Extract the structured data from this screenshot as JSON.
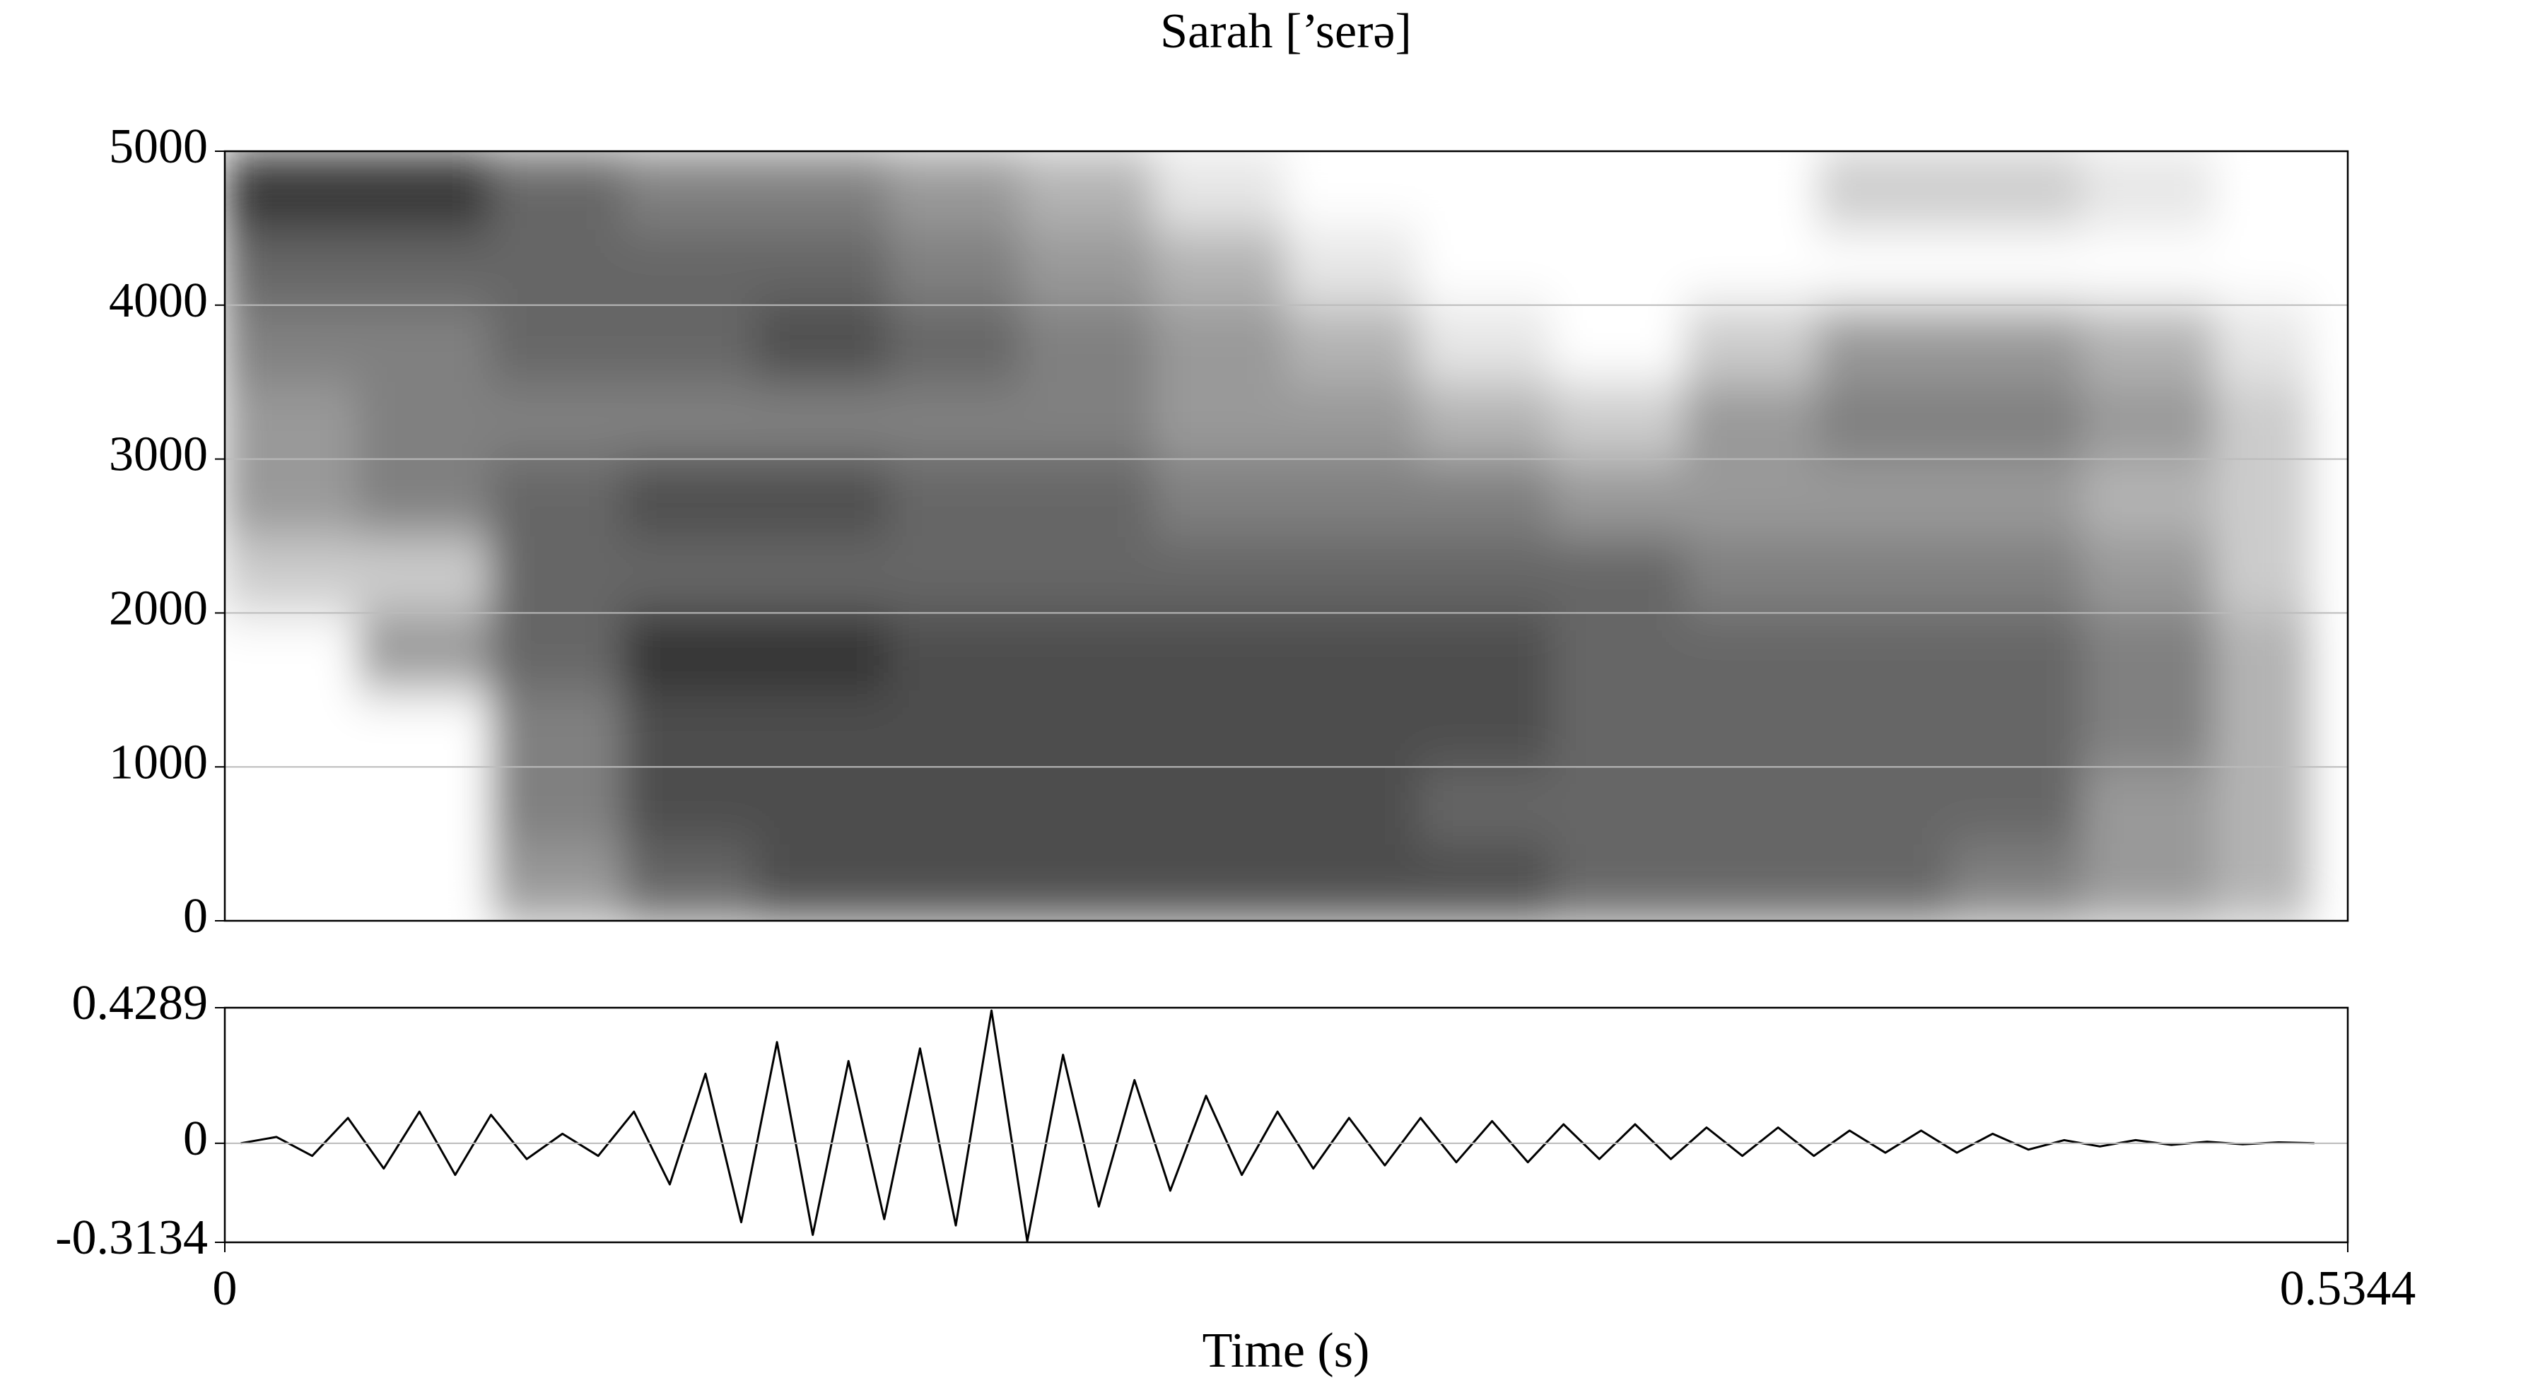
{
  "chart_data": [
    {
      "type": "spectrogram",
      "title": "Sarah [’serə]",
      "xlim": [
        0,
        0.5344
      ],
      "ylim": [
        0,
        5000
      ],
      "yticks": [
        0,
        1000,
        2000,
        3000,
        4000,
        5000
      ],
      "grid": true,
      "time_edges": [
        0,
        0.0334,
        0.0668,
        0.1002,
        0.1336,
        0.167,
        0.2004,
        0.2338,
        0.2672,
        0.3006,
        0.334,
        0.3674,
        0.4008,
        0.4342,
        0.4676,
        0.501,
        0.5247
      ],
      "freq_edges": [
        0,
        500,
        1000,
        1500,
        2000,
        2500,
        3000,
        3500,
        4000,
        4500,
        5000
      ],
      "intensity": [
        [
          0,
          0,
          0.4,
          0.6,
          0.7,
          0.7,
          0.7,
          0.7,
          0.7,
          0.7,
          0.6,
          0.6,
          0.6,
          0.5,
          0.4,
          0.3
        ],
        [
          0,
          0,
          0.5,
          0.7,
          0.7,
          0.7,
          0.7,
          0.7,
          0.7,
          0.6,
          0.6,
          0.6,
          0.6,
          0.6,
          0.4,
          0.3
        ],
        [
          0,
          0,
          0.5,
          0.7,
          0.7,
          0.7,
          0.7,
          0.7,
          0.7,
          0.7,
          0.6,
          0.6,
          0.6,
          0.6,
          0.5,
          0.3
        ],
        [
          0,
          0.4,
          0.6,
          0.8,
          0.8,
          0.7,
          0.7,
          0.7,
          0.7,
          0.7,
          0.6,
          0.6,
          0.6,
          0.6,
          0.5,
          0.3
        ],
        [
          0.2,
          0.2,
          0.6,
          0.6,
          0.6,
          0.6,
          0.6,
          0.6,
          0.6,
          0.6,
          0.6,
          0.5,
          0.5,
          0.5,
          0.4,
          0.2
        ],
        [
          0.4,
          0.5,
          0.6,
          0.7,
          0.7,
          0.6,
          0.6,
          0.5,
          0.5,
          0.5,
          0.4,
          0.4,
          0.4,
          0.4,
          0.3,
          0.2
        ],
        [
          0.4,
          0.5,
          0.5,
          0.5,
          0.5,
          0.5,
          0.5,
          0.4,
          0.4,
          0.3,
          0.2,
          0.4,
          0.5,
          0.5,
          0.4,
          0.2
        ],
        [
          0.5,
          0.5,
          0.6,
          0.6,
          0.7,
          0.6,
          0.5,
          0.4,
          0.3,
          0.1,
          0,
          0.2,
          0.4,
          0.4,
          0.3,
          0.1
        ],
        [
          0.6,
          0.6,
          0.6,
          0.6,
          0.6,
          0.5,
          0.4,
          0.3,
          0.1,
          0,
          0,
          0,
          0,
          0,
          0,
          0
        ],
        [
          0.8,
          0.8,
          0.6,
          0.5,
          0.5,
          0.4,
          0.3,
          0.1,
          0,
          0,
          0,
          0,
          0.2,
          0.2,
          0.1,
          0
        ]
      ]
    },
    {
      "type": "line",
      "xlabel": "Time (s)",
      "color": "#000000",
      "xlim": [
        0,
        0.5344
      ],
      "xticks": [
        0,
        0.5344
      ],
      "ylim": [
        -0.3134,
        0.4289
      ],
      "yticks": [
        -0.3134,
        0,
        0.4289
      ],
      "grid": true,
      "x": [
        0.004,
        0.013,
        0.022,
        0.031,
        0.04,
        0.049,
        0.058,
        0.067,
        0.076,
        0.085,
        0.094,
        0.103,
        0.112,
        0.121,
        0.13,
        0.139,
        0.148,
        0.157,
        0.166,
        0.175,
        0.184,
        0.193,
        0.202,
        0.211,
        0.22,
        0.229,
        0.238,
        0.247,
        0.256,
        0.265,
        0.274,
        0.283,
        0.292,
        0.301,
        0.31,
        0.319,
        0.328,
        0.337,
        0.346,
        0.355,
        0.364,
        0.373,
        0.382,
        0.391,
        0.4,
        0.409,
        0.418,
        0.427,
        0.436,
        0.445,
        0.454,
        0.463,
        0.472,
        0.481,
        0.49,
        0.499,
        0.508,
        0.517,
        0.526
      ],
      "values": [
        0,
        0.02,
        -0.04,
        0.08,
        -0.08,
        0.1,
        -0.1,
        0.09,
        -0.05,
        0.03,
        -0.04,
        0.1,
        -0.13,
        0.22,
        -0.25,
        0.32,
        -0.29,
        0.26,
        -0.24,
        0.3,
        -0.26,
        0.42,
        -0.31,
        0.28,
        -0.2,
        0.2,
        -0.15,
        0.15,
        -0.1,
        0.1,
        -0.08,
        0.08,
        -0.07,
        0.08,
        -0.06,
        0.07,
        -0.06,
        0.06,
        -0.05,
        0.06,
        -0.05,
        0.05,
        -0.04,
        0.05,
        -0.04,
        0.04,
        -0.03,
        0.04,
        -0.03,
        0.03,
        -0.02,
        0.01,
        -0.01,
        0.01,
        -0.005,
        0.005,
        -0.003,
        0.003,
        0
      ]
    }
  ]
}
